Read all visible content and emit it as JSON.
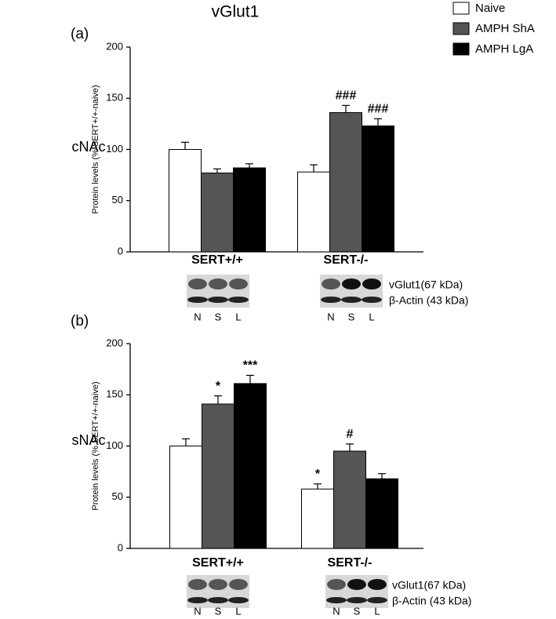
{
  "chart_data": [
    {
      "type": "bar",
      "title": "vGlut1",
      "panel_label": "(a)",
      "region": "cNAc",
      "ylabel": "Protein levels (% SERT+/+-naive)",
      "categories": [
        "SERT+/+",
        "SERT-/-"
      ],
      "series": [
        {
          "name": "Naive",
          "color": "#ffffff",
          "values": [
            100,
            78
          ],
          "errors": [
            7,
            7
          ],
          "annotations": [
            null,
            null
          ]
        },
        {
          "name": "AMPH ShA",
          "color": "#555555",
          "values": [
            77,
            136
          ],
          "errors": [
            4,
            7
          ],
          "annotations": [
            null,
            "###"
          ]
        },
        {
          "name": "AMPH LgA",
          "color": "#000000",
          "values": [
            82,
            123
          ],
          "errors": [
            4,
            7
          ],
          "annotations": [
            null,
            "###"
          ]
        }
      ],
      "ylim": [
        0,
        200
      ],
      "yticks": [
        0,
        50,
        100,
        150,
        200
      ],
      "lane_labels": [
        "N",
        "S",
        "L"
      ],
      "blot_labels": [
        "vGlut1(67 kDa)",
        "β-Actin (43 kDa)"
      ]
    },
    {
      "type": "bar",
      "panel_label": "(b)",
      "region": "sNAc",
      "ylabel": "Protein levels (% SERT+/+-naive)",
      "categories": [
        "SERT+/+",
        "SERT-/-"
      ],
      "series": [
        {
          "name": "Naive",
          "color": "#ffffff",
          "values": [
            100,
            58
          ],
          "errors": [
            7,
            5
          ],
          "annotations": [
            null,
            "*"
          ]
        },
        {
          "name": "AMPH ShA",
          "color": "#555555",
          "values": [
            141,
            95
          ],
          "errors": [
            8,
            7
          ],
          "annotations": [
            "*",
            "#"
          ]
        },
        {
          "name": "AMPH LgA",
          "color": "#000000",
          "values": [
            161,
            68
          ],
          "errors": [
            8,
            5
          ],
          "annotations": [
            "***",
            null
          ]
        }
      ],
      "ylim": [
        0,
        200
      ],
      "yticks": [
        0,
        50,
        100,
        150,
        200
      ],
      "lane_labels": [
        "N",
        "S",
        "L"
      ],
      "blot_labels": [
        "vGlut1(67 kDa)",
        "β-Actin (43 kDa)"
      ]
    }
  ]
}
